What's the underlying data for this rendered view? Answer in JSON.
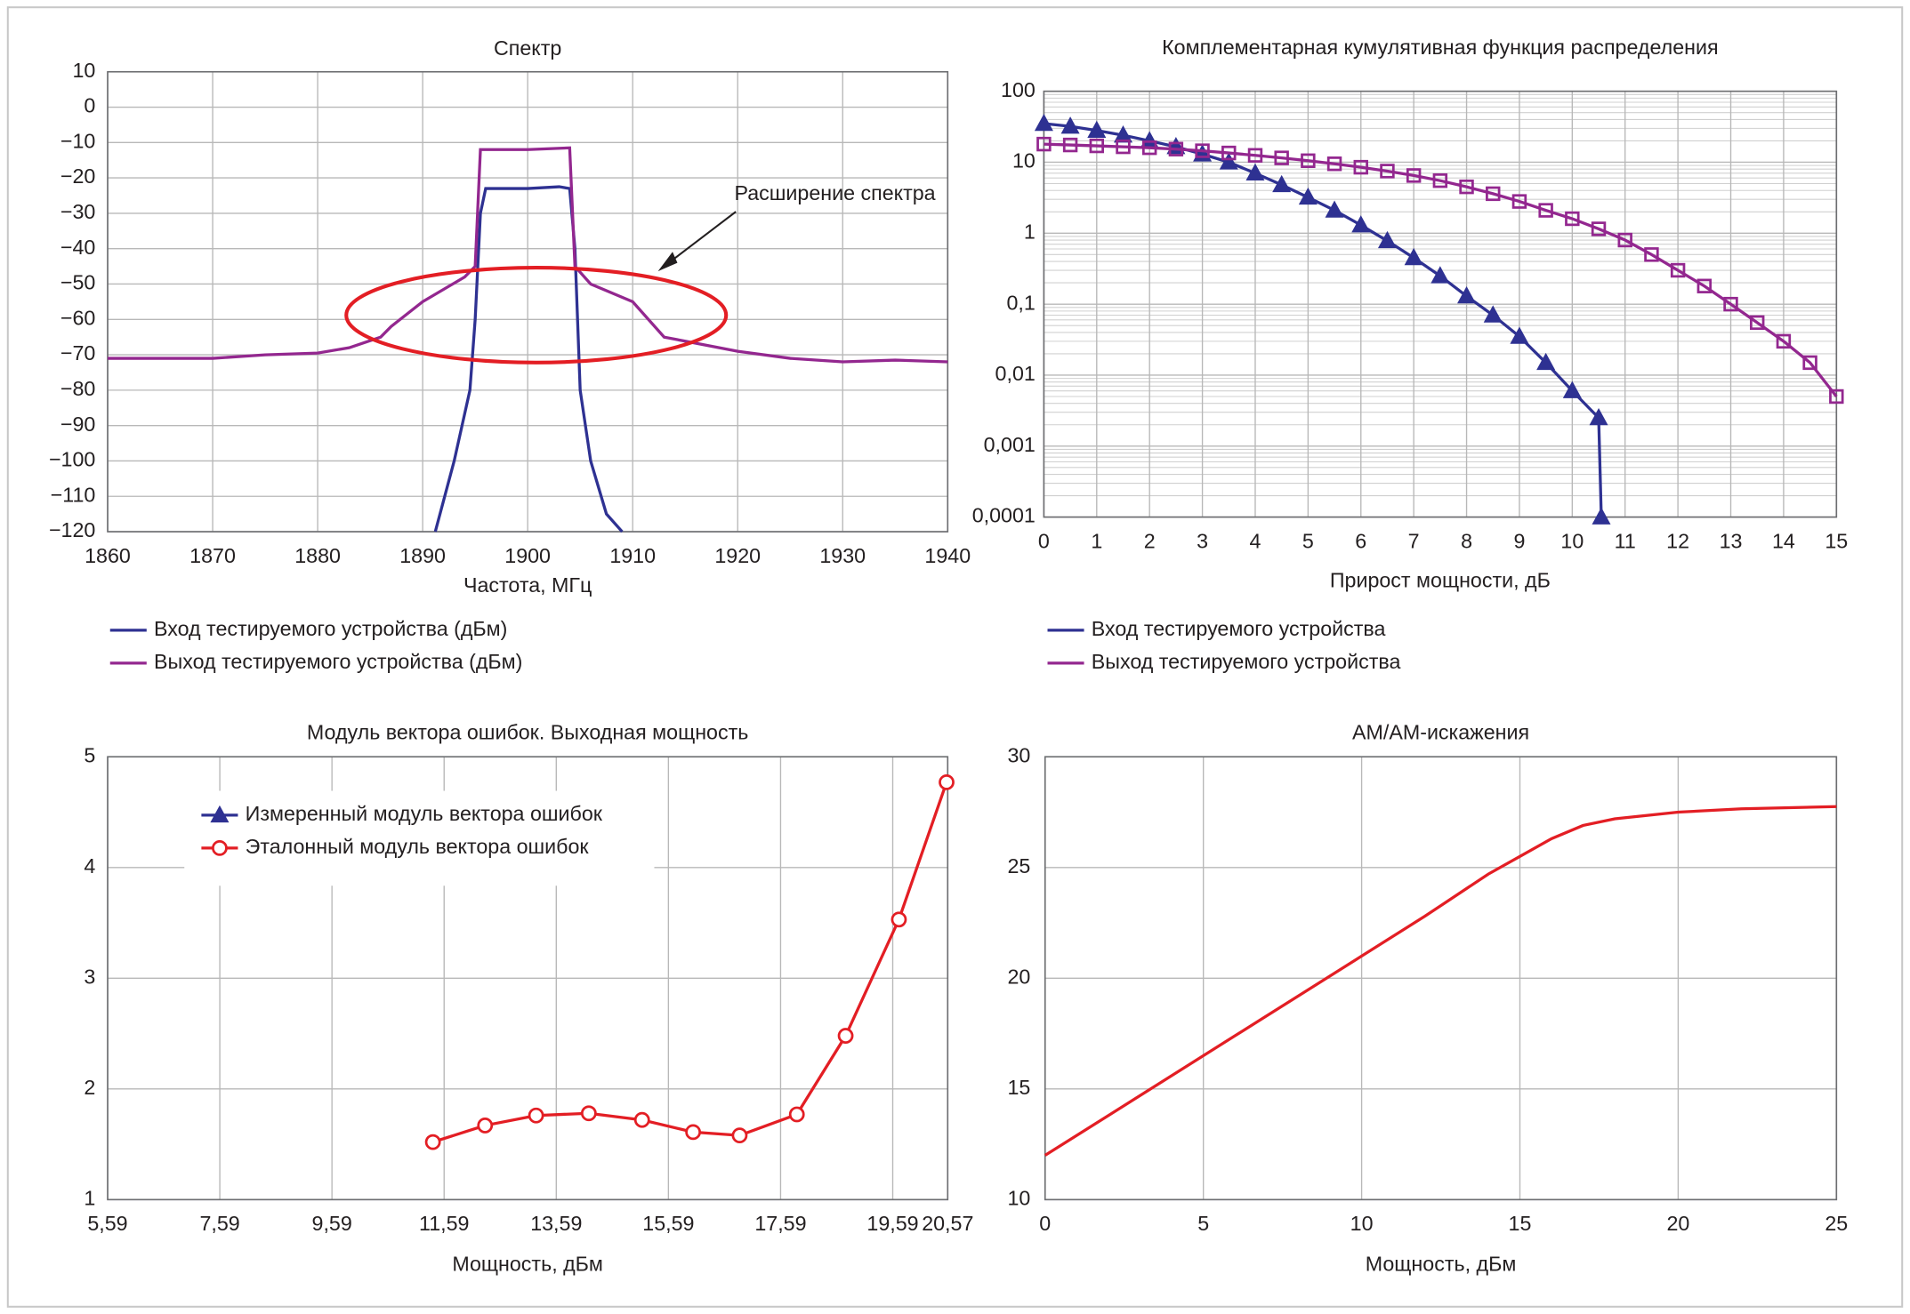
{
  "chart_data": [
    {
      "type": "line",
      "title": "Спектр",
      "xlabel": "Частота, МГц",
      "annotation": "Расширение спектра",
      "xlim": [
        1860,
        1940
      ],
      "xticks": [
        1860,
        1870,
        1880,
        1890,
        1900,
        1910,
        1920,
        1930,
        1940
      ],
      "ylim": [
        -120,
        10
      ],
      "yticks": [
        {
          "value": -120,
          "label": "−120"
        },
        {
          "value": -110,
          "label": "−110"
        },
        {
          "value": -100,
          "label": "−100"
        },
        {
          "value": -90,
          "label": "−90"
        },
        {
          "value": -80,
          "label": "−80"
        },
        {
          "value": -70,
          "label": "−70"
        },
        {
          "value": -60,
          "label": "−60"
        },
        {
          "value": -50,
          "label": "−50"
        },
        {
          "value": -40,
          "label": "−40"
        },
        {
          "value": -30,
          "label": "−30"
        },
        {
          "value": -20,
          "label": "−20"
        },
        {
          "value": -10,
          "label": "−10"
        },
        0,
        10
      ],
      "grid": true,
      "legend": "below",
      "series": [
        {
          "name": "Вход тестируемого устройства (дБм)",
          "color": "#2e3192",
          "x": [
            1891.2,
            1893,
            1894.5,
            1895,
            1895.5,
            1896,
            1900,
            1903,
            1904,
            1904.5,
            1905,
            1906,
            1907.5,
            1909
          ],
          "values": [
            -120,
            -100,
            -80,
            -60,
            -30,
            -23,
            -23,
            -22.5,
            -23,
            -40,
            -80,
            -100,
            -115,
            -120
          ]
        },
        {
          "name": "Выход тестируемого устройства (дБм)",
          "color": "#93278f",
          "x": [
            1860,
            1870,
            1875,
            1880,
            1883,
            1886,
            1887,
            1890,
            1894,
            1895,
            1895.5,
            1900,
            1904,
            1904.5,
            1906,
            1910,
            1913,
            1920,
            1925,
            1930,
            1935,
            1940
          ],
          "values": [
            -71,
            -71,
            -70,
            -69.5,
            -68,
            -65,
            -62,
            -55,
            -48,
            -45,
            -12,
            -12,
            -11.5,
            -45,
            -50,
            -55,
            -65,
            -69,
            -71,
            -72,
            -71.5,
            -72
          ]
        }
      ]
    },
    {
      "type": "line",
      "title": "Комплементарная кумулятивная функция распределения",
      "xlabel": "Прирост мощности, дБ",
      "xlim": [
        0,
        15
      ],
      "xticks": [
        0,
        1,
        2,
        3,
        4,
        5,
        6,
        7,
        8,
        9,
        10,
        11,
        12,
        13,
        14,
        15
      ],
      "ylim": [
        0.0001,
        100
      ],
      "log_scale": true,
      "yticks": [
        {
          "value": 0.0001,
          "label": "0,0001"
        },
        {
          "value": 0.001,
          "label": "0,001"
        },
        {
          "value": 0.01,
          "label": "0,01"
        },
        {
          "value": 0.1,
          "label": "0,1"
        },
        1,
        10,
        100
      ],
      "grid": true,
      "legend": "below",
      "series": [
        {
          "name": "Вход тестируемого устройства",
          "color": "#2e3192",
          "marker": "triangle",
          "x": [
            0,
            0.5,
            1,
            1.5,
            2,
            2.5,
            3,
            3.5,
            4,
            4.5,
            5,
            5.5,
            6,
            6.5,
            7,
            7.5,
            8,
            8.5,
            9,
            9.5,
            10,
            10.5,
            10.55
          ],
          "values": [
            35,
            32,
            28,
            24,
            20,
            16.5,
            13,
            10,
            7,
            4.8,
            3.2,
            2.1,
            1.3,
            0.78,
            0.45,
            0.25,
            0.13,
            0.07,
            0.035,
            0.015,
            0.006,
            0.0025,
            0.0001
          ]
        },
        {
          "name": "Выход тестируемого устройства",
          "color": "#93278f",
          "marker": "square",
          "x": [
            0,
            0.5,
            1,
            1.5,
            2,
            2.5,
            3,
            3.5,
            4,
            4.5,
            5,
            5.5,
            6,
            6.5,
            7,
            7.5,
            8,
            8.5,
            9,
            9.5,
            10,
            10.5,
            11,
            11.5,
            12,
            12.5,
            13,
            13.5,
            14,
            14.5,
            15
          ],
          "values": [
            18,
            17.5,
            17,
            16.5,
            16,
            15.3,
            14.5,
            13.5,
            12.5,
            11.5,
            10.5,
            9.5,
            8.5,
            7.5,
            6.5,
            5.5,
            4.5,
            3.6,
            2.8,
            2.1,
            1.6,
            1.15,
            0.8,
            0.5,
            0.3,
            0.18,
            0.1,
            0.055,
            0.03,
            0.015,
            0.005
          ]
        }
      ]
    },
    {
      "type": "line",
      "title": "Модуль вектора ошибок. Выходная мощность",
      "xlabel": "Мощность, дБм",
      "xlim": [
        5.59,
        20.57
      ],
      "xticks": [
        {
          "value": 5.59,
          "label": "5,59"
        },
        {
          "value": 7.59,
          "label": "7,59"
        },
        {
          "value": 9.59,
          "label": "9,59"
        },
        {
          "value": 11.59,
          "label": "11,59"
        },
        {
          "value": 13.59,
          "label": "13,59"
        },
        {
          "value": 15.59,
          "label": "15,59"
        },
        {
          "value": 17.59,
          "label": "17,59"
        },
        {
          "value": 19.59,
          "label": "19,59"
        },
        {
          "value": 20.57,
          "label": "20,57"
        }
      ],
      "ylim": [
        1,
        5
      ],
      "yticks": [
        1,
        2,
        3,
        4,
        5
      ],
      "grid": true,
      "legend": "upper left",
      "series": [
        {
          "name": "Измеренный модуль вектора ошибок",
          "color": "#2e3192",
          "marker": "triangle"
        },
        {
          "name": "Эталонный модуль вектора ошибок",
          "color": "#e31e24",
          "marker": "circle",
          "x": [
            11.39,
            12.32,
            13.23,
            14.17,
            15.12,
            16.03,
            16.86,
            17.88,
            18.75,
            19.7,
            20.55
          ],
          "values": [
            1.52,
            1.67,
            1.76,
            1.78,
            1.72,
            1.61,
            1.58,
            1.77,
            2.48,
            3.53,
            4.77
          ]
        }
      ]
    },
    {
      "type": "line",
      "title": "АМ/АМ-искажения",
      "xlabel": "Мощность, дБм",
      "xlim": [
        0,
        25
      ],
      "xticks": [
        0,
        5,
        10,
        15,
        20,
        25
      ],
      "ylim": [
        10,
        30
      ],
      "yticks": [
        10,
        15,
        20,
        25,
        30
      ],
      "grid": true,
      "series": [
        {
          "color": "#e31e24",
          "x": [
            0,
            2,
            4,
            6,
            8,
            10,
            12,
            14,
            15,
            16,
            17,
            18,
            20,
            22,
            25
          ],
          "values": [
            12,
            13.8,
            15.6,
            17.4,
            19.2,
            21,
            22.8,
            24.7,
            25.5,
            26.3,
            26.9,
            27.2,
            27.5,
            27.65,
            27.75
          ]
        }
      ]
    }
  ]
}
